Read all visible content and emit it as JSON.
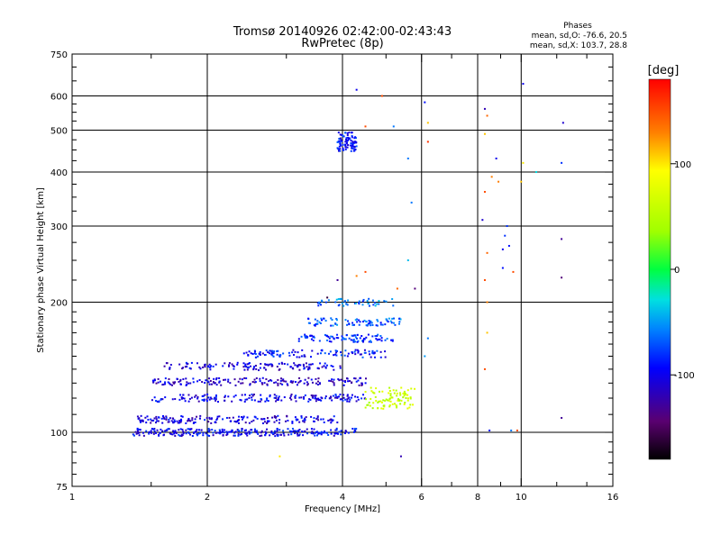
{
  "chart_data": {
    "type": "scatter",
    "title": "Tromsø 20140926 02:42:00-02:43:43",
    "subtitle": "RwPretec (8p)",
    "xlabel": "Frequency [MHz]",
    "ylabel": "Stationary phase Virtual Height [km]",
    "x_scale": "log",
    "y_scale": "log",
    "xlim": [
      1,
      16
    ],
    "ylim": [
      75,
      750
    ],
    "x_ticks": [
      {
        "value": 1,
        "label": "1"
      },
      {
        "value": 2,
        "label": "2"
      },
      {
        "value": 4,
        "label": "4"
      },
      {
        "value": 6,
        "label": "6"
      },
      {
        "value": 8,
        "label": "8"
      },
      {
        "value": 10,
        "label": "10"
      },
      {
        "value": 16,
        "label": "16"
      }
    ],
    "y_ticks": [
      {
        "value": 75,
        "label": "75"
      },
      {
        "value": 100,
        "label": "100"
      },
      {
        "value": 200,
        "label": "200"
      },
      {
        "value": 300,
        "label": "300"
      },
      {
        "value": 400,
        "label": "400"
      },
      {
        "value": 500,
        "label": "500"
      },
      {
        "value": 600,
        "label": "600"
      },
      {
        "value": 750,
        "label": "750"
      }
    ],
    "x_grid": [
      2,
      4,
      6,
      8,
      10
    ],
    "y_grid": [
      100,
      200,
      300,
      400,
      500,
      600
    ],
    "grid": true,
    "phase_stats": {
      "title": "Phases",
      "line_o": "mean, sd,O: -76.6, 20.5",
      "line_x": "mean, sd,X: 103.7, 28.8"
    },
    "colorbar": {
      "label": "[deg]",
      "range": [
        -180,
        180
      ],
      "ticks": [
        {
          "value": 100,
          "label": "100"
        },
        {
          "value": 0,
          "label": "0"
        },
        {
          "value": -100,
          "label": "-100"
        }
      ]
    },
    "traces": [
      {
        "name": "lower-trace-1",
        "x_range": [
          1.35,
          4.3
        ],
        "height": 100,
        "phase": -95,
        "spread": 0.02,
        "n": 260
      },
      {
        "name": "lower-trace-2",
        "x_range": [
          1.4,
          3.9
        ],
        "height": 107,
        "phase": -105,
        "spread": 0.02,
        "n": 180
      },
      {
        "name": "mid-trace-120",
        "x_range": [
          1.5,
          4.5
        ],
        "height": 120,
        "phase": -100,
        "spread": 0.02,
        "n": 170
      },
      {
        "name": "mid-trace-130",
        "x_range": [
          1.5,
          4.6
        ],
        "height": 131,
        "phase": -110,
        "spread": 0.02,
        "n": 170
      },
      {
        "name": "mid-trace-140",
        "x_range": [
          1.6,
          4.0
        ],
        "height": 142,
        "phase": -105,
        "spread": 0.02,
        "n": 130
      },
      {
        "name": "upper-trace-150",
        "x_range": [
          2.4,
          5.0
        ],
        "height": 152,
        "phase": -90,
        "spread": 0.02,
        "n": 110
      },
      {
        "name": "upper-trace-165",
        "x_range": [
          3.2,
          5.2
        ],
        "height": 165,
        "phase": -80,
        "spread": 0.02,
        "n": 90
      },
      {
        "name": "upper-trace-180",
        "x_range": [
          3.3,
          5.4
        ],
        "height": 180,
        "phase": -70,
        "spread": 0.02,
        "n": 80
      },
      {
        "name": "upper-trace-200",
        "x_range": [
          3.5,
          5.2
        ],
        "height": 200,
        "phase": -60,
        "spread": 0.02,
        "n": 50
      },
      {
        "name": "x-mode-cluster",
        "x_range": [
          4.5,
          5.8
        ],
        "height": 120,
        "phase": 60,
        "spread": 0.06,
        "n": 90
      },
      {
        "name": "f-layer-cluster",
        "x_range": [
          3.9,
          4.3
        ],
        "height": 470,
        "phase": -90,
        "spread": 0.05,
        "n": 90
      }
    ],
    "scatter_points": [
      {
        "x": 4.3,
        "y": 620,
        "phase": -100
      },
      {
        "x": 4.5,
        "y": 510,
        "phase": 150
      },
      {
        "x": 4.9,
        "y": 600,
        "phase": 150
      },
      {
        "x": 5.2,
        "y": 510,
        "phase": -60
      },
      {
        "x": 6.1,
        "y": 580,
        "phase": -90
      },
      {
        "x": 6.2,
        "y": 520,
        "phase": 110
      },
      {
        "x": 6.2,
        "y": 470,
        "phase": 160
      },
      {
        "x": 5.6,
        "y": 430,
        "phase": -60
      },
      {
        "x": 5.7,
        "y": 340,
        "phase": -60
      },
      {
        "x": 5.8,
        "y": 215,
        "phase": -140
      },
      {
        "x": 4.5,
        "y": 235,
        "phase": 150
      },
      {
        "x": 4.3,
        "y": 230,
        "phase": 130
      },
      {
        "x": 3.9,
        "y": 225,
        "phase": -130
      },
      {
        "x": 3.7,
        "y": 205,
        "phase": -160
      },
      {
        "x": 5.3,
        "y": 215,
        "phase": 140
      },
      {
        "x": 5.6,
        "y": 250,
        "phase": -40
      },
      {
        "x": 8.3,
        "y": 560,
        "phase": -120
      },
      {
        "x": 8.4,
        "y": 540,
        "phase": 140
      },
      {
        "x": 8.3,
        "y": 490,
        "phase": 110
      },
      {
        "x": 8.2,
        "y": 310,
        "phase": -110
      },
      {
        "x": 8.3,
        "y": 360,
        "phase": 150
      },
      {
        "x": 8.6,
        "y": 390,
        "phase": 130
      },
      {
        "x": 8.8,
        "y": 430,
        "phase": -100
      },
      {
        "x": 8.9,
        "y": 380,
        "phase": 130
      },
      {
        "x": 8.4,
        "y": 260,
        "phase": 140
      },
      {
        "x": 8.3,
        "y": 225,
        "phase": 150
      },
      {
        "x": 8.4,
        "y": 200,
        "phase": 130
      },
      {
        "x": 8.4,
        "y": 170,
        "phase": 110
      },
      {
        "x": 8.3,
        "y": 140,
        "phase": 150
      },
      {
        "x": 8.5,
        "y": 101,
        "phase": -90
      },
      {
        "x": 9.3,
        "y": 300,
        "phase": -80
      },
      {
        "x": 9.2,
        "y": 285,
        "phase": -80
      },
      {
        "x": 9.1,
        "y": 265,
        "phase": -100
      },
      {
        "x": 9.4,
        "y": 270,
        "phase": -90
      },
      {
        "x": 9.6,
        "y": 235,
        "phase": 150
      },
      {
        "x": 9.1,
        "y": 240,
        "phase": -90
      },
      {
        "x": 9.5,
        "y": 101,
        "phase": -60
      },
      {
        "x": 9.8,
        "y": 101,
        "phase": 150
      },
      {
        "x": 10.0,
        "y": 380,
        "phase": 110
      },
      {
        "x": 10.1,
        "y": 420,
        "phase": 100
      },
      {
        "x": 10.1,
        "y": 640,
        "phase": -100
      },
      {
        "x": 10.8,
        "y": 400,
        "phase": -30
      },
      {
        "x": 12.4,
        "y": 520,
        "phase": -110
      },
      {
        "x": 12.3,
        "y": 420,
        "phase": -80
      },
      {
        "x": 12.3,
        "y": 280,
        "phase": -130
      },
      {
        "x": 12.3,
        "y": 228,
        "phase": -140
      },
      {
        "x": 12.3,
        "y": 108,
        "phase": -130
      },
      {
        "x": 5.4,
        "y": 88,
        "phase": -120
      },
      {
        "x": 2.9,
        "y": 88,
        "phase": 100
      },
      {
        "x": 6.2,
        "y": 165,
        "phase": -60
      },
      {
        "x": 6.1,
        "y": 150,
        "phase": -50
      }
    ]
  }
}
